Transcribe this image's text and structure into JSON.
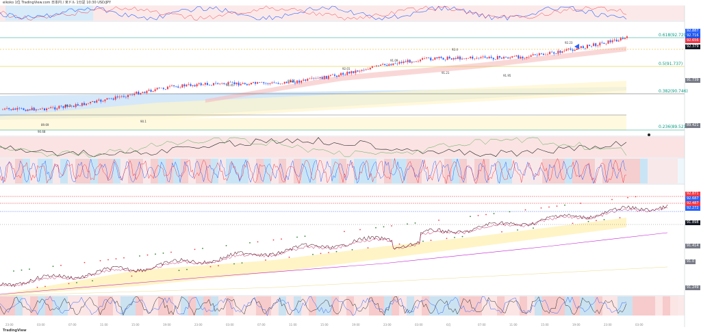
{
  "header": {
    "title": "eikoko 1位 TradingView.com 日本円 / 米ドル 1分足 10:30 USD/JPY",
    "logo_text": "TradingView"
  },
  "upper_chart": {
    "fib_levels": [
      {
        "label": "0.618(92.729)",
        "color": "#089981"
      },
      {
        "label": "0.5(91.737)",
        "color": "#089981"
      },
      {
        "label": "0.382(90.746)",
        "color": "#089981"
      },
      {
        "label": "0.236(89.521)",
        "color": "#089981"
      }
    ],
    "price_tags": [
      {
        "label": "92.887",
        "color": "#2962ff"
      },
      {
        "label": "92.716",
        "color": "#1e53e5"
      },
      {
        "label": "92.656",
        "color": "#f23645"
      },
      {
        "label": "92.379",
        "color": "#131722"
      },
      {
        "label": "91.739",
        "color": "#787b86"
      },
      {
        "label": "89.421",
        "color": "#787b86"
      }
    ],
    "annotations": [
      "92.4",
      "91.09",
      "90.45",
      "91.9",
      "90.1",
      "92.23",
      "91.95",
      "90.68",
      "92.01",
      "91.21",
      "90.25",
      "89.69"
    ]
  },
  "lower_chart": {
    "price_tags": [
      {
        "label": "92.871",
        "color": "#f23645"
      },
      {
        "label": "92.687",
        "color": "#2962ff"
      },
      {
        "label": "92.487",
        "color": "#f23645"
      },
      {
        "label": "92.272",
        "color": "#2962ff"
      },
      {
        "label": "91.898",
        "color": "#131722"
      },
      {
        "label": "91.414",
        "color": "#787b86"
      },
      {
        "label": "91.0",
        "color": "#787b86"
      },
      {
        "label": "91.249",
        "color": "#787b86"
      }
    ]
  },
  "time_axis": [
    "23:00",
    "03:00",
    "07:00",
    "11:00",
    "15:00",
    "19:00",
    "23:00",
    "03:00",
    "07:00",
    "11:00",
    "15:00",
    "19:00",
    "23:00",
    "03:00",
    "6月",
    "07:00",
    "11:00",
    "15:00",
    "19:00",
    "23:00",
    "03:00"
  ],
  "footer": {
    "logo": "TradingView"
  },
  "colors": {
    "bull": "#f23645",
    "bear": "#2962ff",
    "fib": "#089981",
    "band_red": "#f8c5c5",
    "band_blue": "#b3d7f5",
    "band_yellow": "#fff5cc"
  }
}
